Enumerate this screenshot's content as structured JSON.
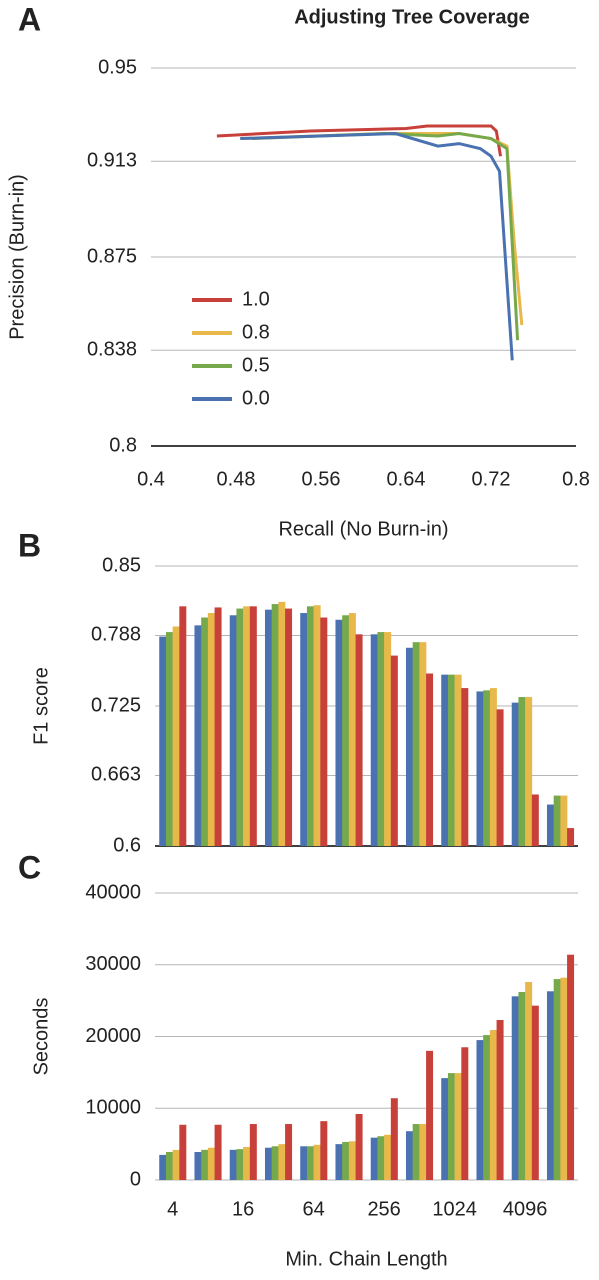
{
  "chart_data": [
    {
      "type": "line",
      "panel": "A",
      "title": "Adjusting Tree Coverage",
      "xlabel": "Recall (No Burn-in)",
      "ylabel": "Precision (Burn-in)",
      "xlim": [
        0.4,
        0.8
      ],
      "xticks": [
        0.4,
        0.48,
        0.56,
        0.64,
        0.72,
        0.8
      ],
      "ylim": [
        0.8,
        0.95
      ],
      "yticks": [
        0.8,
        0.838,
        0.875,
        0.913,
        0.95
      ],
      "grid": true,
      "legend": "lower left",
      "series": [
        {
          "name": "1.0",
          "color": "#c8403a",
          "x": [
            0.462,
            0.55,
            0.64,
            0.66,
            0.72,
            0.725,
            0.729
          ],
          "values": [
            0.923,
            0.925,
            0.926,
            0.927,
            0.927,
            0.925,
            0.915
          ]
        },
        {
          "name": "0.8",
          "color": "#e8b84a",
          "x": [
            0.484,
            0.62,
            0.69,
            0.72,
            0.735,
            0.742,
            0.749
          ],
          "values": [
            0.922,
            0.924,
            0.924,
            0.922,
            0.919,
            0.88,
            0.848
          ]
        },
        {
          "name": "0.5",
          "color": "#76a84c",
          "x": [
            0.495,
            0.62,
            0.67,
            0.69,
            0.72,
            0.735,
            0.745
          ],
          "values": [
            0.922,
            0.924,
            0.923,
            0.924,
            0.922,
            0.918,
            0.842
          ]
        },
        {
          "name": "0.0",
          "color": "#4a72b0",
          "x": [
            0.484,
            0.63,
            0.67,
            0.69,
            0.71,
            0.72,
            0.728,
            0.74
          ],
          "values": [
            0.922,
            0.924,
            0.919,
            0.92,
            0.918,
            0.915,
            0.909,
            0.834
          ]
        }
      ]
    },
    {
      "type": "bar",
      "panel": "B",
      "ylabel": "F1 score",
      "categories": [
        null,
        null,
        null,
        null,
        null,
        null,
        null,
        null,
        null,
        null,
        null,
        null
      ],
      "ylim": [
        0.6,
        0.85
      ],
      "yticks": [
        0.6,
        0.663,
        0.725,
        0.788,
        0.85
      ],
      "grid": true,
      "series": [
        {
          "color": "#4a72b0",
          "values": [
            0.787,
            0.797,
            0.806,
            0.811,
            0.808,
            0.802,
            0.789,
            0.777,
            0.753,
            0.738,
            0.728,
            0.637
          ]
        },
        {
          "color": "#76a84c",
          "values": [
            0.791,
            0.804,
            0.812,
            0.816,
            0.814,
            0.806,
            0.791,
            0.782,
            0.753,
            0.739,
            0.733,
            0.645
          ]
        },
        {
          "color": "#e8b84a",
          "values": [
            0.796,
            0.808,
            0.814,
            0.818,
            0.815,
            0.808,
            0.791,
            0.782,
            0.753,
            0.741,
            0.733,
            0.645
          ]
        },
        {
          "color": "#c8403a",
          "values": [
            0.814,
            0.813,
            0.814,
            0.812,
            0.804,
            0.789,
            0.77,
            0.754,
            0.741,
            0.722,
            0.646,
            0.616
          ]
        }
      ]
    },
    {
      "type": "bar",
      "panel": "C",
      "ylabel": "Seconds",
      "xlabel": "Min. Chain Length",
      "categories": [
        "4",
        null,
        "16",
        null,
        "64",
        null,
        "256",
        null,
        "1024",
        null,
        "4096",
        null
      ],
      "ylim": [
        0,
        40000
      ],
      "yticks": [
        0,
        10000,
        20000,
        30000,
        40000
      ],
      "grid": true,
      "series": [
        {
          "color": "#4a72b0",
          "values": [
            3500,
            3900,
            4200,
            4500,
            4700,
            5000,
            5900,
            6800,
            14200,
            19500,
            25600,
            26300
          ]
        },
        {
          "color": "#76a84c",
          "values": [
            3900,
            4200,
            4300,
            4700,
            4700,
            5300,
            6100,
            7800,
            14900,
            20200,
            26200,
            28000
          ]
        },
        {
          "color": "#e8b84a",
          "values": [
            4200,
            4500,
            4600,
            5000,
            4900,
            5400,
            6300,
            7800,
            14900,
            20900,
            27600,
            28200
          ]
        },
        {
          "color": "#c8403a",
          "values": [
            7700,
            7700,
            7800,
            7800,
            8200,
            9200,
            11400,
            18000,
            18500,
            22300,
            24300,
            31400
          ]
        }
      ]
    }
  ]
}
